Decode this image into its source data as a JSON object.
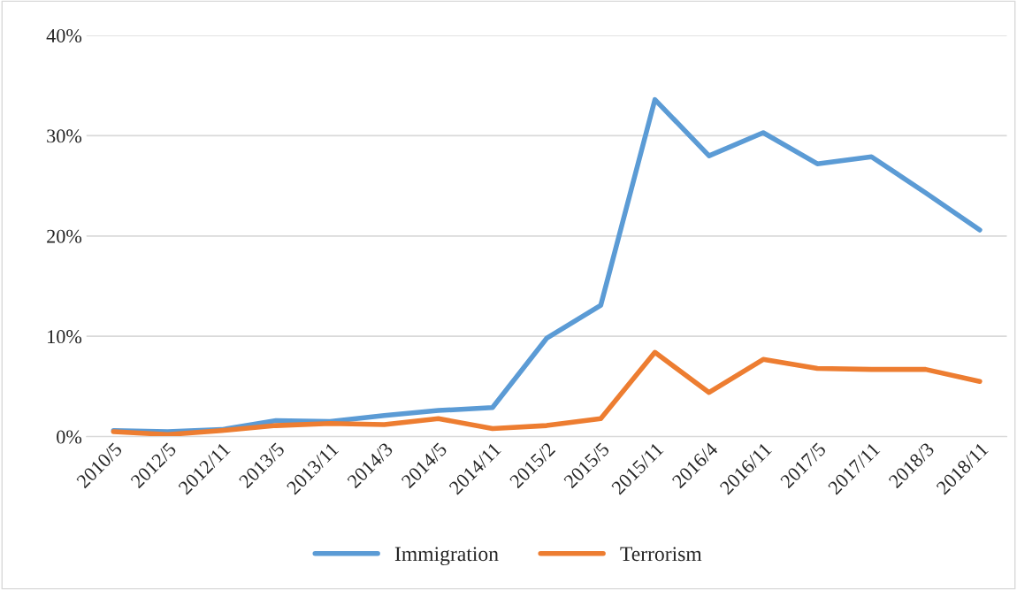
{
  "chart_data": {
    "type": "line",
    "categories": [
      "2010/5",
      "2012/5",
      "2012/11",
      "2013/5",
      "2013/11",
      "2014/3",
      "2014/5",
      "2014/11",
      "2015/2",
      "2015/5",
      "2015/11",
      "2016/4",
      "2016/11",
      "2017/5",
      "2017/11",
      "2018/3",
      "2018/11"
    ],
    "series": [
      {
        "name": "Immigration",
        "color": "#5b9bd5",
        "values": [
          0.6,
          0.5,
          0.7,
          1.6,
          1.5,
          2.1,
          2.6,
          2.9,
          9.8,
          13.1,
          33.6,
          28.0,
          30.3,
          27.2,
          27.9,
          24.3,
          20.6
        ]
      },
      {
        "name": "Terrorism",
        "color": "#ed7d31",
        "values": [
          0.5,
          0.2,
          0.6,
          1.1,
          1.3,
          1.2,
          1.8,
          0.8,
          1.1,
          1.8,
          8.4,
          4.4,
          7.7,
          6.8,
          6.7,
          6.7,
          5.5
        ]
      }
    ],
    "ylim": [
      0,
      40
    ],
    "yticks": [
      {
        "value": 0,
        "label": "0%"
      },
      {
        "value": 10,
        "label": "10%"
      },
      {
        "value": 20,
        "label": "20%"
      },
      {
        "value": 30,
        "label": "30%"
      },
      {
        "value": 40,
        "label": "40%"
      }
    ],
    "grid": "y",
    "legend": "bottom",
    "marker": "none",
    "line_style": "solid"
  }
}
